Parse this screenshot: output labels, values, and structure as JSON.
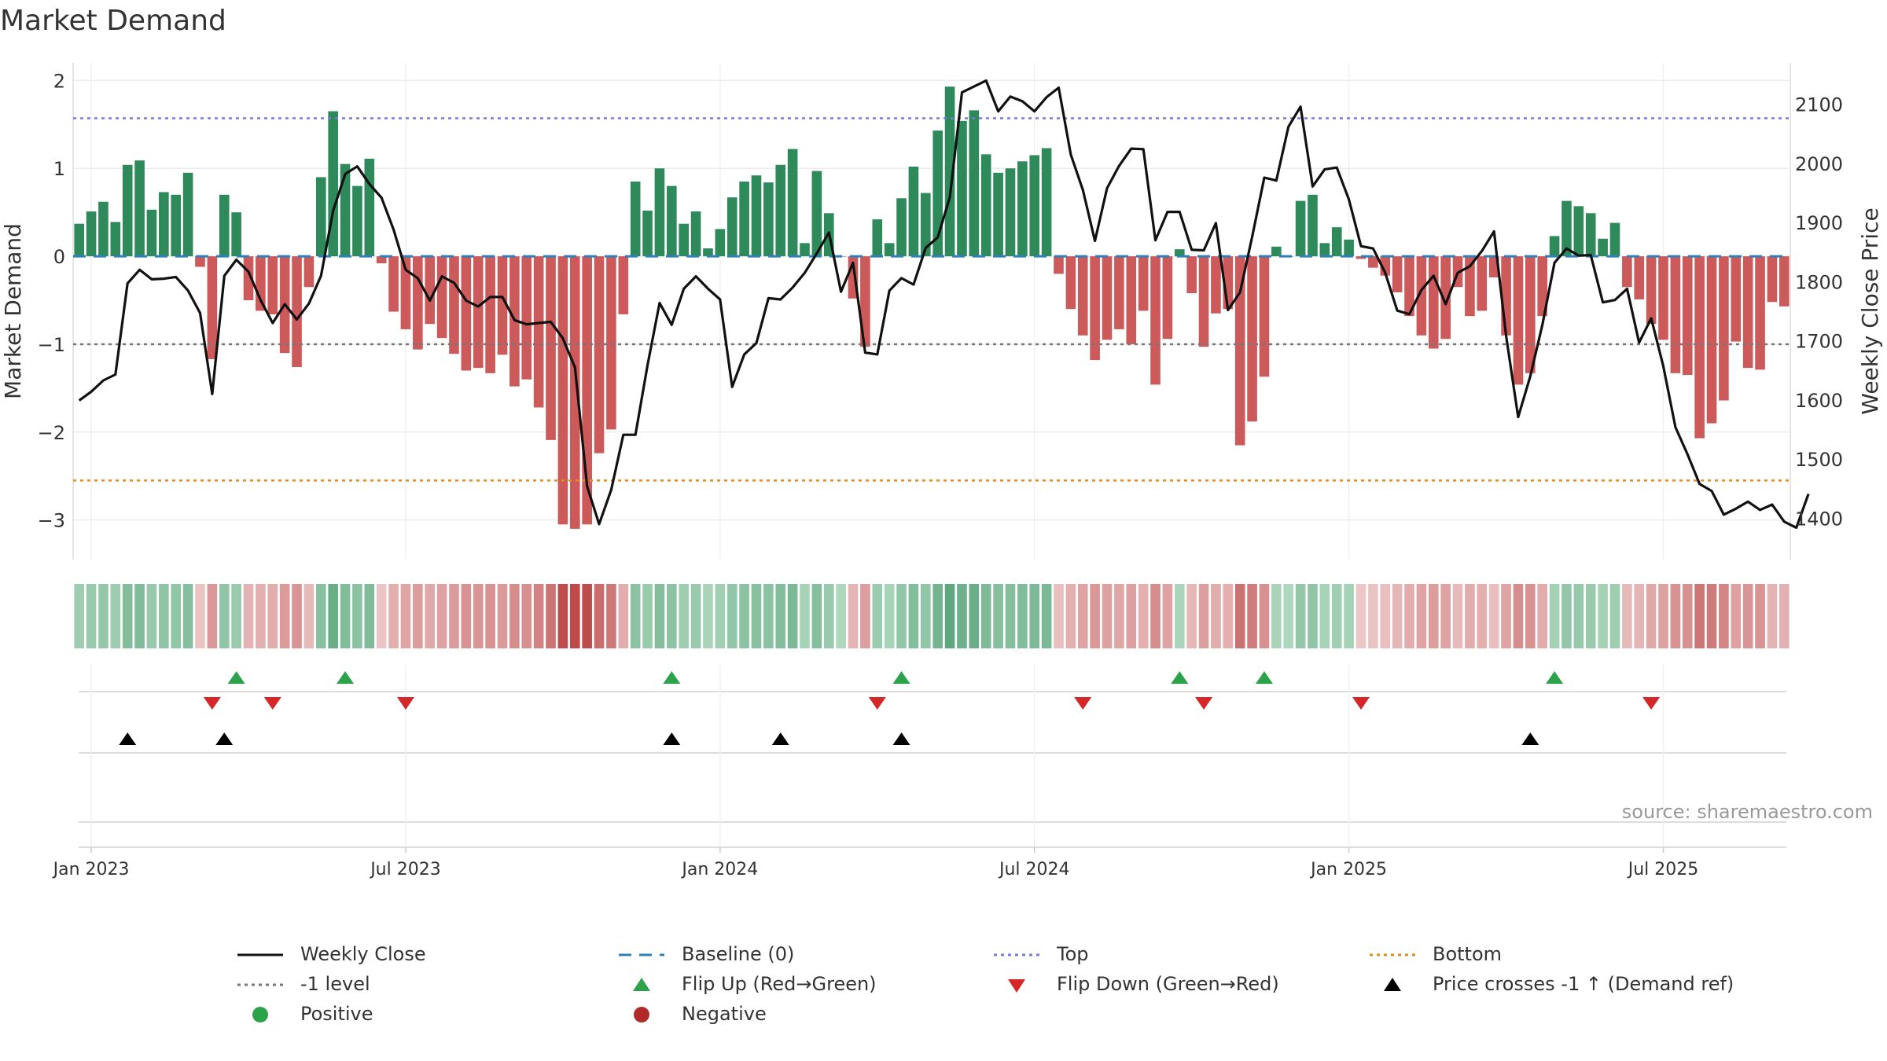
{
  "title": "Market Demand",
  "source": "source: sharemaestro.com",
  "colors": {
    "positive": "#2e8a5a",
    "negative": "#cd5a5a",
    "price": "#111111",
    "baseline": "#2f7fb8",
    "top": "#7a7adb",
    "bottom": "#e08e1e",
    "minus_one": "#777777",
    "flip_up": "#2ca24a",
    "flip_down": "#d62728",
    "cross": "#000000"
  },
  "chart_data": {
    "type": "bar+line",
    "title": "Market Demand",
    "y_left_label": "Market Demand",
    "y_right_label": "Weekly Close Price",
    "y_left_range": [
      -3.45,
      2.2
    ],
    "y_right_range": [
      1330,
      2170
    ],
    "y_left_ticks": [
      "2",
      "1",
      "0",
      "−1",
      "−2",
      "−3"
    ],
    "y_left_tick_values": [
      2,
      1,
      0,
      -1,
      -2,
      -3
    ],
    "y_right_ticks": [
      "2100",
      "2000",
      "1900",
      "1800",
      "1700",
      "1600",
      "1500",
      "1400"
    ],
    "y_right_tick_values": [
      2100,
      2000,
      1900,
      1800,
      1700,
      1600,
      1500,
      1400
    ],
    "x_tick_labels": [
      "Jan 2023",
      "Jul 2023",
      "Jan 2024",
      "Jul 2024",
      "Jan 2025",
      "Jul 2025"
    ],
    "x_tick_weeks": [
      1.5,
      27.5,
      53.5,
      79.5,
      105.5,
      131.5
    ],
    "reference_lines": {
      "top": 1.57,
      "bottom": -2.55,
      "minus_one": -1,
      "baseline": 0
    },
    "demand": [
      0.37,
      0.51,
      0.62,
      0.39,
      1.04,
      1.09,
      0.53,
      0.73,
      0.7,
      0.95,
      -0.12,
      -1.17,
      0.7,
      0.5,
      -0.5,
      -0.62,
      -0.66,
      -1.1,
      -1.26,
      -0.35,
      0.9,
      1.65,
      1.05,
      0.8,
      1.11,
      -0.08,
      -0.63,
      -0.83,
      -1.06,
      -0.77,
      -0.93,
      -1.11,
      -1.3,
      -1.27,
      -1.33,
      -1.12,
      -1.48,
      -1.4,
      -1.72,
      -2.09,
      -3.05,
      -3.1,
      -3.05,
      -2.24,
      -1.97,
      -0.66,
      0.85,
      0.52,
      1.0,
      0.8,
      0.37,
      0.51,
      0.09,
      0.31,
      0.67,
      0.85,
      0.92,
      0.84,
      1.04,
      1.22,
      0.15,
      0.97,
      0.49,
      0.0,
      -0.48,
      -1.03,
      0.42,
      0.15,
      0.66,
      1.02,
      0.72,
      1.43,
      1.93,
      1.54,
      1.66,
      1.16,
      0.95,
      1.0,
      1.08,
      1.15,
      1.23,
      -0.2,
      -0.6,
      -0.9,
      -1.18,
      -0.95,
      -0.83,
      -1.0,
      -0.62,
      -1.46,
      -0.94,
      0.08,
      -0.42,
      -1.03,
      -0.65,
      -0.6,
      -2.15,
      -1.88,
      -1.37,
      0.11,
      0.0,
      0.63,
      0.7,
      0.15,
      0.33,
      0.19,
      -0.03,
      -0.13,
      -0.22,
      -0.41,
      -0.68,
      -0.9,
      -1.05,
      -0.94,
      -0.35,
      -0.68,
      -0.62,
      -0.24,
      -0.9,
      -1.46,
      -1.33,
      -0.68,
      0.23,
      0.63,
      0.57,
      0.49,
      0.2,
      0.38,
      -0.35,
      -0.49,
      -0.77,
      -0.95,
      -1.33,
      -1.35,
      -2.07,
      -1.9,
      -1.64,
      -0.97,
      -1.27,
      -1.29,
      -0.52,
      -0.57
    ],
    "price": [
      1599,
      1614,
      1633,
      1643,
      1797,
      1820,
      1804,
      1805,
      1808,
      1785,
      1747,
      1610,
      1810,
      1837,
      1817,
      1769,
      1730,
      1762,
      1736,
      1763,
      1810,
      1920,
      1982,
      1995,
      1965,
      1942,
      1888,
      1820,
      1806,
      1768,
      1809,
      1798,
      1768,
      1758,
      1774,
      1774,
      1735,
      1728,
      1730,
      1732,
      1704,
      1655,
      1454,
      1390,
      1448,
      1541,
      1541,
      1659,
      1764,
      1727,
      1788,
      1809,
      1788,
      1770,
      1622,
      1677,
      1696,
      1772,
      1770,
      1790,
      1815,
      1848,
      1883,
      1783,
      1832,
      1680,
      1677,
      1785,
      1806,
      1795,
      1857,
      1875,
      1943,
      2120,
      2130,
      2140,
      2088,
      2113,
      2105,
      2088,
      2112,
      2128,
      2015,
      1955,
      1869,
      1958,
      1996,
      2025,
      2024,
      1870,
      1918,
      1918,
      1854,
      1853,
      1899,
      1752,
      1782,
      1876,
      1976,
      1971,
      2062,
      2096,
      1961,
      1990,
      1993,
      1939,
      1860,
      1856,
      1815,
      1751,
      1745,
      1786,
      1810,
      1762,
      1815,
      1826,
      1852,
      1885,
      1708,
      1571,
      1640,
      1727,
      1832,
      1856,
      1844,
      1845,
      1765,
      1769,
      1788,
      1697,
      1738,
      1657,
      1554,
      1508,
      1458,
      1446,
      1406,
      1416,
      1428,
      1414,
      1423,
      1394,
      1384,
      1441
    ],
    "heat_strip": "colored cells per week (green = positive demand, red = negative demand, darker = stronger)",
    "flip_up_weeks": [
      13.5,
      22.5,
      49.5,
      68.5,
      91.5,
      98.5,
      122.5
    ],
    "flip_down_weeks": [
      11.5,
      16.5,
      27.5,
      66.5,
      83.5,
      93.5,
      106.5,
      130.5
    ],
    "cross_weeks": [
      4.5,
      12.5,
      49.5,
      58.5,
      68.5,
      120.5
    ],
    "legend": [
      "Weekly Close",
      "Baseline (0)",
      "Top",
      "Bottom",
      "-1 level",
      "Flip Up (Red→Green)",
      "Flip Down (Green→Red)",
      "Price crosses -1 ↑ (Demand ref)",
      "Positive",
      "Negative"
    ]
  },
  "legend": {
    "weekly_close": "Weekly Close",
    "baseline": "Baseline (0)",
    "top": "Top",
    "bottom": "Bottom",
    "minus_one": "-1 level",
    "flip_up": "Flip Up (Red→Green)",
    "flip_down": "Flip Down (Green→Red)",
    "cross": "Price crosses -1 ↑ (Demand ref)",
    "positive": "Positive",
    "negative": "Negative"
  }
}
